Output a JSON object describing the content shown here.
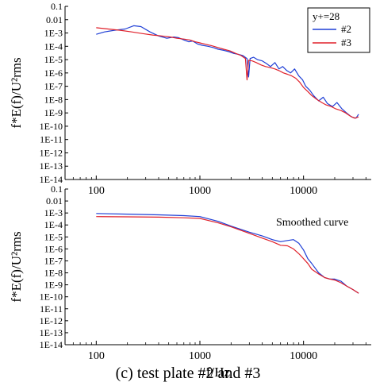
{
  "figure": {
    "caption": "(c) test plate #2 and #3"
  },
  "chart_data": [
    {
      "type": "line",
      "panel": "top",
      "title": "",
      "xlabel": "",
      "ylabel": "f*E(f)/U²rms",
      "x_scale": "log",
      "y_scale": "log",
      "xlim": [
        50,
        45000
      ],
      "ylim": [
        1e-14,
        0.1
      ],
      "x_ticks": [
        "100",
        "1000",
        "10000"
      ],
      "y_ticks": [
        "0.1",
        "0.01",
        "1E-3",
        "1E-4",
        "1E-5",
        "1E-6",
        "1E-7",
        "1E-8",
        "1E-9",
        "1E-10",
        "1E-11",
        "1E-12",
        "1E-13",
        "1E-14"
      ],
      "legend": {
        "title": "y+=28",
        "position": "top-right",
        "entries": [
          "#2",
          "#3"
        ]
      },
      "series": [
        {
          "name": "#2",
          "color": "#1f3fd6",
          "points": [
            [
              100,
              0.0008
            ],
            [
              120,
              0.0012
            ],
            [
              150,
              0.0016
            ],
            [
              190,
              0.002
            ],
            [
              230,
              0.0035
            ],
            [
              270,
              0.003
            ],
            [
              330,
              0.0012
            ],
            [
              400,
              0.0006
            ],
            [
              480,
              0.0004
            ],
            [
              560,
              0.0005
            ],
            [
              620,
              0.00045
            ],
            [
              700,
              0.0003
            ],
            [
              780,
              0.00022
            ],
            [
              850,
              0.00025
            ],
            [
              950,
              0.00015
            ],
            [
              1050,
              0.00012
            ],
            [
              1200,
              0.0001
            ],
            [
              1350,
              8e-05
            ],
            [
              1500,
              6e-05
            ],
            [
              1700,
              5e-05
            ],
            [
              1900,
              4e-05
            ],
            [
              2100,
              3e-05
            ],
            [
              2350,
              2.5e-05
            ],
            [
              2600,
              2e-05
            ],
            [
              2850,
              1.2e-05
            ],
            [
              2950,
              5e-07
            ],
            [
              3050,
              1.2e-05
            ],
            [
              3300,
              1.5e-05
            ],
            [
              3600,
              1e-05
            ],
            [
              4000,
              8e-06
            ],
            [
              4400,
              5e-06
            ],
            [
              4800,
              3e-06
            ],
            [
              5300,
              6e-06
            ],
            [
              5800,
              2e-06
            ],
            [
              6300,
              3e-06
            ],
            [
              6900,
              1.5e-06
            ],
            [
              7500,
              1e-06
            ],
            [
              8200,
              2e-06
            ],
            [
              9000,
              6e-07
            ],
            [
              9800,
              3e-07
            ],
            [
              10500,
              1e-07
            ],
            [
              11500,
              5e-08
            ],
            [
              12500,
              2e-08
            ],
            [
              14000,
              8e-09
            ],
            [
              15500,
              1.5e-08
            ],
            [
              17000,
              5e-09
            ],
            [
              19000,
              3e-09
            ],
            [
              21000,
              6e-09
            ],
            [
              23500,
              2e-09
            ],
            [
              26000,
              1e-09
            ],
            [
              29000,
              5e-10
            ],
            [
              32000,
              4e-10
            ],
            [
              34000,
              8e-10
            ]
          ]
        },
        {
          "name": "#3",
          "color": "#e0202a",
          "points": [
            [
              100,
              0.0025
            ],
            [
              130,
              0.002
            ],
            [
              170,
              0.0016
            ],
            [
              220,
              0.0012
            ],
            [
              280,
              0.0009
            ],
            [
              350,
              0.0007
            ],
            [
              430,
              0.0006
            ],
            [
              520,
              0.0005
            ],
            [
              600,
              0.0004
            ],
            [
              700,
              0.00035
            ],
            [
              800,
              0.0003
            ],
            [
              900,
              0.00022
            ],
            [
              1000,
              0.00018
            ],
            [
              1150,
              0.00014
            ],
            [
              1300,
              0.00011
            ],
            [
              1500,
              8e-05
            ],
            [
              1700,
              6e-05
            ],
            [
              1950,
              4.5e-05
            ],
            [
              2200,
              3e-05
            ],
            [
              2500,
              2e-05
            ],
            [
              2750,
              1.2e-05
            ],
            [
              2850,
              3e-07
            ],
            [
              2950,
              9e-06
            ],
            [
              3200,
              8e-06
            ],
            [
              3500,
              6e-06
            ],
            [
              3900,
              4e-06
            ],
            [
              4300,
              3e-06
            ],
            [
              4800,
              2.5e-06
            ],
            [
              5300,
              2e-06
            ],
            [
              5800,
              1.5e-06
            ],
            [
              6400,
              1e-06
            ],
            [
              7000,
              8e-07
            ],
            [
              7700,
              6e-07
            ],
            [
              8400,
              4e-07
            ],
            [
              9200,
              2e-07
            ],
            [
              10000,
              8e-08
            ],
            [
              11000,
              4e-08
            ],
            [
              12000,
              2e-08
            ],
            [
              13500,
              1e-08
            ],
            [
              15000,
              6e-09
            ],
            [
              16500,
              4e-09
            ],
            [
              18500,
              3e-09
            ],
            [
              20500,
              2e-09
            ],
            [
              23000,
              1.5e-09
            ],
            [
              25500,
              1e-09
            ],
            [
              28000,
              6e-10
            ],
            [
              31000,
              4e-10
            ],
            [
              34000,
              5e-10
            ]
          ]
        }
      ]
    },
    {
      "type": "line",
      "panel": "bottom",
      "title": "",
      "xlabel": "f/Hz",
      "ylabel": "f*E(f)/U²rms",
      "x_scale": "log",
      "y_scale": "log",
      "xlim": [
        50,
        45000
      ],
      "ylim": [
        1e-14,
        0.1
      ],
      "x_ticks": [
        "100",
        "1000",
        "10000"
      ],
      "y_ticks": [
        "0.1",
        "0.01",
        "1E-3",
        "1E-4",
        "1E-5",
        "1E-6",
        "1E-7",
        "1E-8",
        "1E-9",
        "1E-10",
        "1E-11",
        "1E-12",
        "1E-13",
        "1E-14"
      ],
      "annotation": "Smoothed curve",
      "series": [
        {
          "name": "#2",
          "color": "#1f3fd6",
          "points": [
            [
              100,
              0.0009
            ],
            [
              200,
              0.0008
            ],
            [
              400,
              0.0007
            ],
            [
              700,
              0.0006
            ],
            [
              1000,
              0.0005
            ],
            [
              1500,
              0.0002
            ],
            [
              2000,
              8e-05
            ],
            [
              3000,
              2.5e-05
            ],
            [
              4000,
              1.2e-05
            ],
            [
              5000,
              6e-06
            ],
            [
              6000,
              4e-06
            ],
            [
              7000,
              5e-06
            ],
            [
              8000,
              6e-06
            ],
            [
              9000,
              3e-06
            ],
            [
              10000,
              8e-07
            ],
            [
              11000,
              1.5e-07
            ],
            [
              12000,
              6e-08
            ],
            [
              14000,
              1e-08
            ],
            [
              16000,
              4e-09
            ],
            [
              18000,
              3e-09
            ],
            [
              20000,
              3e-09
            ],
            [
              23000,
              2e-09
            ],
            [
              26000,
              8e-10
            ],
            [
              30000,
              4e-10
            ],
            [
              34000,
              2e-10
            ]
          ]
        },
        {
          "name": "#3",
          "color": "#e0202a",
          "points": [
            [
              100,
              0.0005
            ],
            [
              200,
              0.00048
            ],
            [
              400,
              0.00045
            ],
            [
              700,
              0.0004
            ],
            [
              1000,
              0.00035
            ],
            [
              1500,
              0.00015
            ],
            [
              2000,
              7e-05
            ],
            [
              3000,
              2e-05
            ],
            [
              4000,
              8e-06
            ],
            [
              5000,
              4e-06
            ],
            [
              6000,
              2e-06
            ],
            [
              7000,
              1.8e-06
            ],
            [
              8000,
              1e-06
            ],
            [
              9000,
              4e-07
            ],
            [
              10000,
              1.5e-07
            ],
            [
              11000,
              6e-08
            ],
            [
              12000,
              2e-08
            ],
            [
              14000,
              8e-09
            ],
            [
              16000,
              4e-09
            ],
            [
              18000,
              3e-09
            ],
            [
              20000,
              2.5e-09
            ],
            [
              23000,
              1.5e-09
            ],
            [
              26000,
              8e-10
            ],
            [
              30000,
              4e-10
            ],
            [
              34000,
              2e-10
            ]
          ]
        }
      ]
    }
  ]
}
